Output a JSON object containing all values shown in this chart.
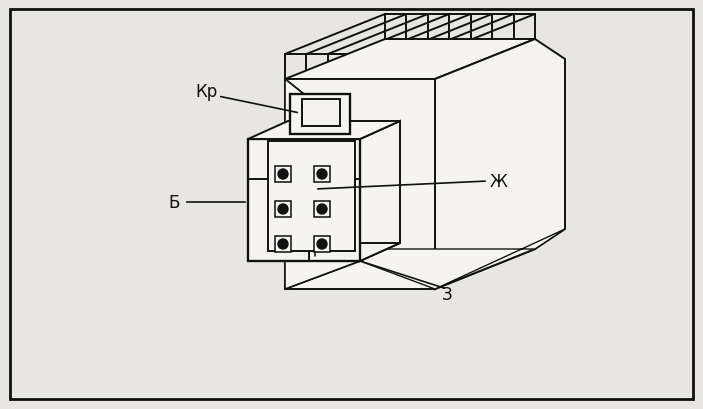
{
  "background_color": "#e8e6e2",
  "fig_bg": "#e8e6e2",
  "border_color": "#111111",
  "line_color": "#111111",
  "line_width": 1.4,
  "figsize": [
    7.03,
    4.1
  ],
  "dpi": 100,
  "label_fontsize": 12,
  "arrow_color": "#111111",
  "white": "#f5f4f0",
  "labels": {
    "Kr": "Кр",
    "B": "Б",
    "Zh": "Ж",
    "Z": "З"
  }
}
